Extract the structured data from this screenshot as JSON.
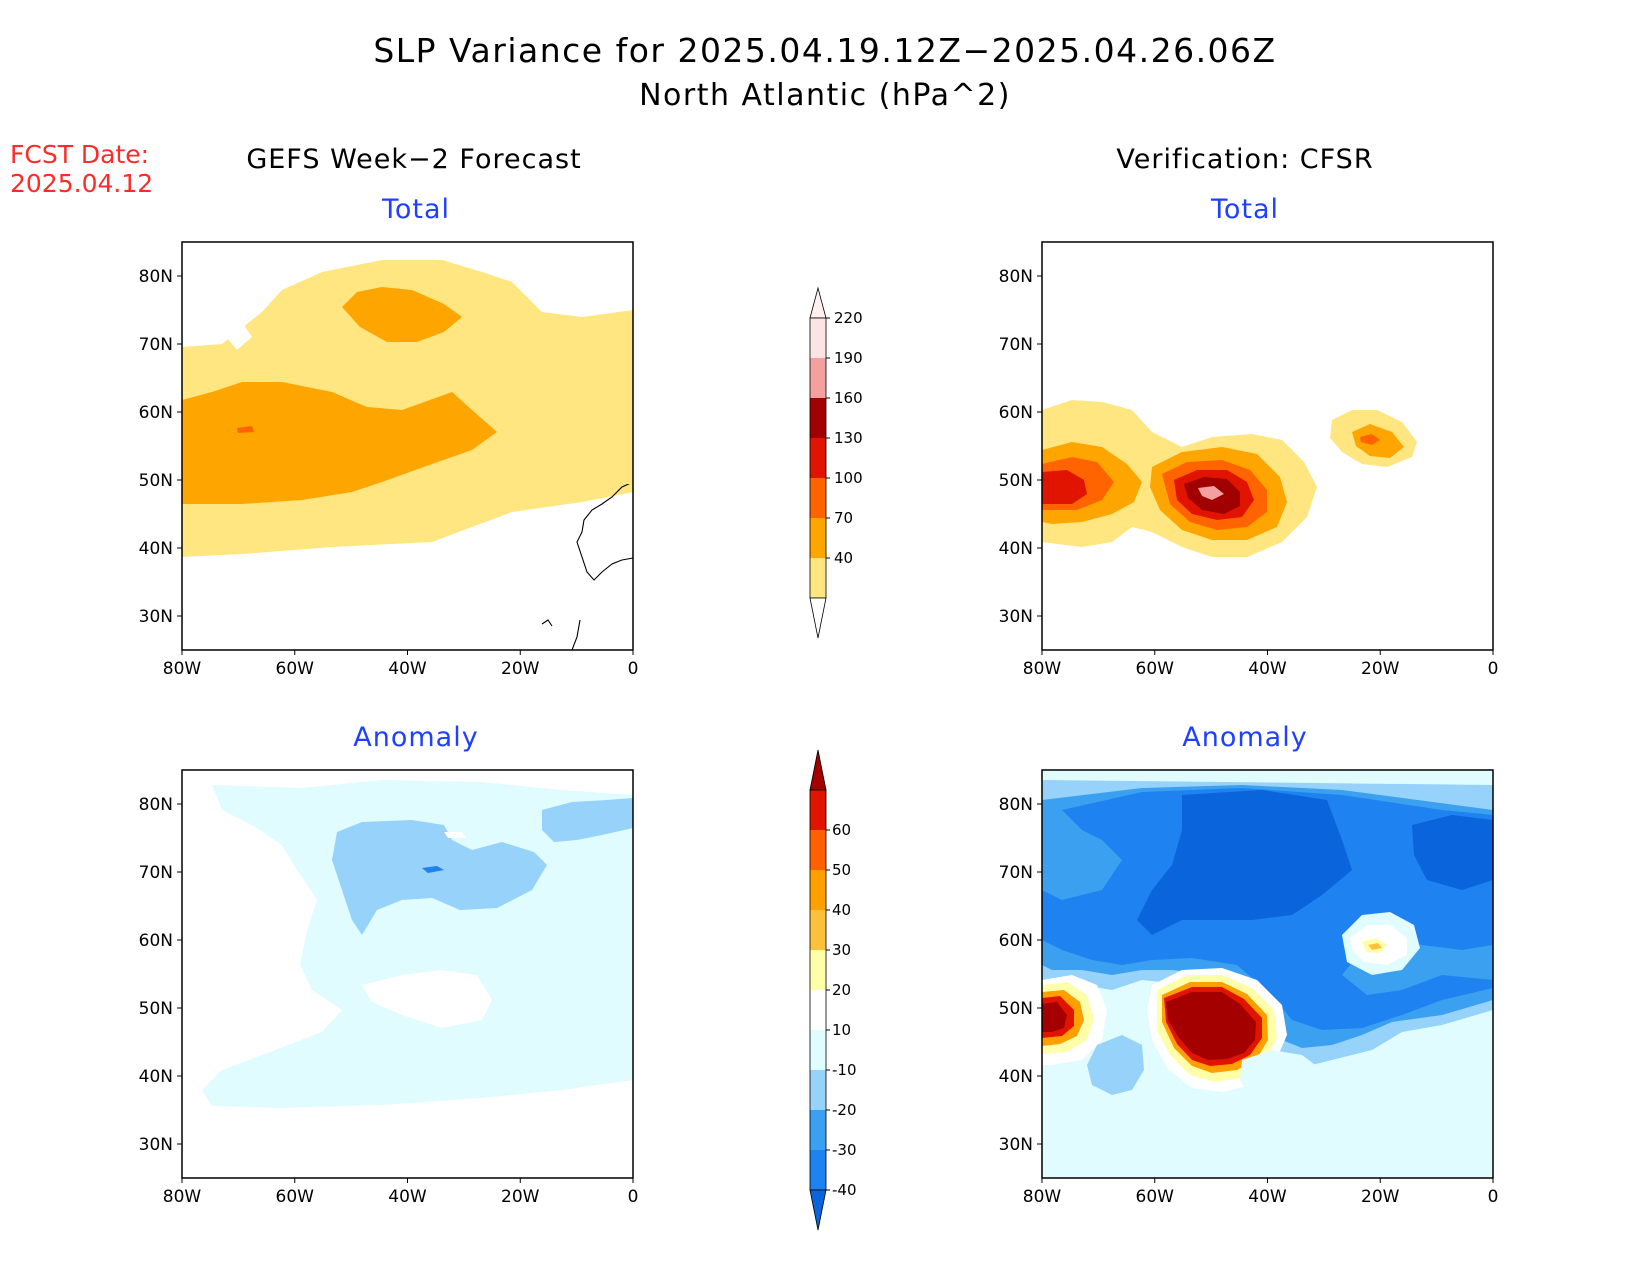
{
  "title": {
    "line1": "SLP Variance for 2025.04.19.12Z−2025.04.26.06Z",
    "line2": "North Atlantic (hPa^2)"
  },
  "fcst_date": {
    "label": "FCST Date:",
    "value": "2025.04.12"
  },
  "columns": {
    "left": "GEFS Week−2 Forecast",
    "right": "Verification: CFSR"
  },
  "rows": {
    "top": "Total",
    "bottom": "Anomaly"
  },
  "axes": {
    "lon_labels": [
      "80W",
      "60W",
      "40W",
      "20W",
      "0"
    ],
    "lat_labels": [
      "30N",
      "40N",
      "50N",
      "60N",
      "70N",
      "80N"
    ],
    "lon_range": [
      -80,
      0
    ],
    "lat_range": [
      25,
      85
    ]
  },
  "colorbars": {
    "total": {
      "ticks": [
        "40",
        "70",
        "100",
        "130",
        "160",
        "190",
        "220"
      ],
      "colors": [
        "#ffe680",
        "#ffa500",
        "#ff6400",
        "#e01400",
        "#a00000",
        "#f4a0a0",
        "#fde4e4"
      ]
    },
    "anomaly": {
      "ticks": [
        "-40",
        "-30",
        "-20",
        "-10",
        "10",
        "20",
        "30",
        "40",
        "50",
        "60"
      ],
      "colors": [
        "#0a64dc",
        "#1e82f0",
        "#3ca0f0",
        "#96d2fa",
        "#e1fcff",
        "#ffffff",
        "#ffffaa",
        "#ffc13c",
        "#ffa000",
        "#ff6000",
        "#e11400",
        "#a50000"
      ]
    }
  },
  "chart_data": [
    {
      "type": "heatmap",
      "panel": "GEFS Week−2 Forecast – Total",
      "units": "hPa^2",
      "features": [
        {
          "region": "broad band 40N–75N, 80W–0",
          "value_range": [
            40,
            70
          ]
        },
        {
          "region": "maximum over east Greenland near 75N 40W",
          "value_range": [
            70,
            100
          ]
        },
        {
          "region": "Labrador Sea to mid-Atlantic band 45N–60N, 80W–22W",
          "value_range": [
            70,
            100
          ]
        },
        {
          "region": "small spot near 58N 69W",
          "value_range": [
            100,
            130
          ]
        }
      ]
    },
    {
      "type": "heatmap",
      "panel": "Verification: CFSR – Total",
      "units": "hPa^2",
      "features": [
        {
          "region": "northeast US / Maritimes 40N–60N, 80W–60W",
          "value_range": [
            40,
            160
          ]
        },
        {
          "region": "western Atlantic centre near 47N 50W",
          "value_range": [
            40,
            220
          ]
        },
        {
          "region": "south of Iceland near 57N 22W",
          "value_range": [
            40,
            100
          ]
        }
      ]
    },
    {
      "type": "heatmap",
      "panel": "GEFS Week−2 Forecast – Anomaly",
      "units": "hPa^2",
      "features": [
        {
          "region": "broad North Atlantic 35N–83N",
          "value_range": [
            -20,
            -10
          ]
        },
        {
          "region": "Greenland / Iceland area",
          "value_range": [
            -30,
            -20
          ]
        },
        {
          "region": "near 69N 42W",
          "value_range": [
            -40,
            -30
          ]
        }
      ]
    },
    {
      "type": "heatmap",
      "panel": "Verification: CFSR – Anomaly",
      "units": "hPa^2",
      "features": [
        {
          "region": "Greenland and subpolar Atlantic 50N–83N",
          "value_range": [
            -40,
            -10
          ]
        },
        {
          "region": "western Atlantic centre near 46N 48W",
          "value_range": [
            10,
            60
          ]
        },
        {
          "region": "US east coast near 47N 77W",
          "value_range": [
            10,
            60
          ]
        },
        {
          "region": "south of Iceland near 56N 21W",
          "value_range": [
            10,
            30
          ]
        }
      ]
    }
  ]
}
